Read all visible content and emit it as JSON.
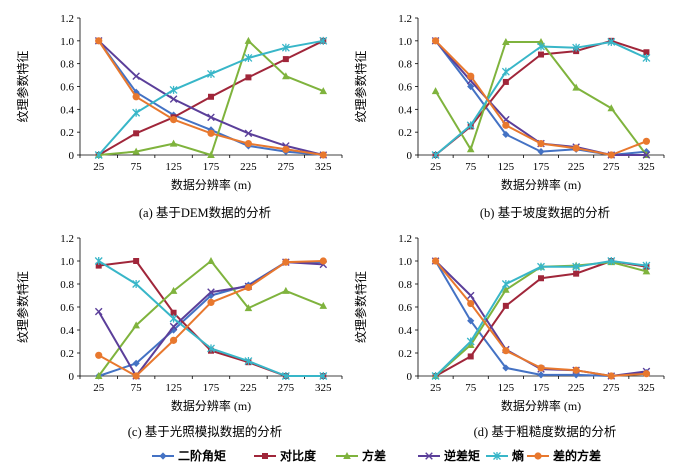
{
  "legend": [
    {
      "label": "二阶角矩",
      "color": "#4472C4",
      "marker": "diamond"
    },
    {
      "label": "对比度",
      "color": "#A0263A",
      "marker": "square"
    },
    {
      "label": "方差",
      "color": "#7FB33D",
      "marker": "triangle"
    },
    {
      "label": "逆差矩",
      "color": "#5B3F9A",
      "marker": "x"
    },
    {
      "label": "熵",
      "color": "#38B6C8",
      "marker": "star"
    },
    {
      "label": "差的方差",
      "color": "#E8782E",
      "marker": "circle"
    }
  ],
  "chart_data": [
    {
      "type": "line",
      "caption": "(a) 基于DEM数据的分析",
      "xlabel": "数据分辨率 (m)",
      "ylabel": "纹理参数特征",
      "x": [
        25,
        75,
        125,
        175,
        225,
        275,
        325
      ],
      "yticks": [
        "0",
        "0.2",
        "0.4",
        "0.6",
        "0.8",
        "1.0",
        "1.2"
      ],
      "ylim": [
        0,
        1.2
      ],
      "series": [
        {
          "name": "二阶角矩",
          "values": [
            1.0,
            0.55,
            0.35,
            0.22,
            0.08,
            0.03,
            0.0
          ]
        },
        {
          "name": "对比度",
          "values": [
            0.0,
            0.19,
            0.33,
            0.51,
            0.68,
            0.84,
            1.0
          ]
        },
        {
          "name": "方差",
          "values": [
            0.0,
            0.03,
            0.1,
            0.0,
            1.0,
            0.69,
            0.56
          ]
        },
        {
          "name": "逆差矩",
          "values": [
            1.0,
            0.69,
            0.49,
            0.33,
            0.19,
            0.08,
            0.0
          ]
        },
        {
          "name": "熵",
          "values": [
            0.0,
            0.37,
            0.57,
            0.71,
            0.85,
            0.94,
            1.0
          ]
        },
        {
          "name": "差的方差",
          "values": [
            1.0,
            0.51,
            0.31,
            0.19,
            0.1,
            0.05,
            0.0
          ]
        }
      ]
    },
    {
      "type": "line",
      "caption": "(b) 基于坡度数据的分析",
      "xlabel": "数据分辨率 (m)",
      "ylabel": "纹理参数特征",
      "x": [
        25,
        75,
        125,
        175,
        225,
        275,
        325
      ],
      "yticks": [
        "0",
        "0.2",
        "0.4",
        "0.6",
        "0.8",
        "1.0",
        "1.2"
      ],
      "ylim": [
        0,
        1.2
      ],
      "series": [
        {
          "name": "二阶角矩",
          "values": [
            1.0,
            0.6,
            0.18,
            0.03,
            0.05,
            0.0,
            0.03
          ]
        },
        {
          "name": "对比度",
          "values": [
            0.0,
            0.25,
            0.64,
            0.88,
            0.91,
            1.0,
            0.9
          ]
        },
        {
          "name": "方差",
          "values": [
            0.56,
            0.05,
            0.99,
            0.99,
            0.59,
            0.41,
            0.0
          ]
        },
        {
          "name": "逆差矩",
          "values": [
            1.0,
            0.65,
            0.31,
            0.1,
            0.07,
            0.0,
            0.0
          ]
        },
        {
          "name": "熵",
          "values": [
            0.0,
            0.26,
            0.73,
            0.95,
            0.94,
            0.99,
            0.85
          ]
        },
        {
          "name": "差的方差",
          "values": [
            1.0,
            0.69,
            0.26,
            0.1,
            0.06,
            0.0,
            0.12
          ]
        }
      ]
    },
    {
      "type": "line",
      "caption": "(c) 基于光照模拟数据的分析",
      "xlabel": "数据分辨率 (m)",
      "ylabel": "纹理参数特征",
      "x": [
        25,
        75,
        125,
        175,
        225,
        275,
        325
      ],
      "yticks": [
        "0",
        "0.2",
        "0.4",
        "0.6",
        "0.8",
        "1.0",
        "1.2"
      ],
      "ylim": [
        0,
        1.2
      ],
      "series": [
        {
          "name": "二阶角矩",
          "values": [
            0.0,
            0.11,
            0.4,
            0.7,
            0.79,
            0.99,
            0.99
          ]
        },
        {
          "name": "对比度",
          "values": [
            0.96,
            1.0,
            0.55,
            0.22,
            0.12,
            0.0,
            0.0
          ]
        },
        {
          "name": "方差",
          "values": [
            0.0,
            0.44,
            0.74,
            1.0,
            0.59,
            0.74,
            0.61
          ]
        },
        {
          "name": "逆差矩",
          "values": [
            0.56,
            0.0,
            0.43,
            0.73,
            0.78,
            0.99,
            0.97
          ]
        },
        {
          "name": "熵",
          "values": [
            1.0,
            0.8,
            0.5,
            0.24,
            0.13,
            0.0,
            0.0
          ]
        },
        {
          "name": "差的方差",
          "values": [
            0.18,
            0.0,
            0.31,
            0.64,
            0.77,
            0.99,
            1.0
          ]
        }
      ]
    },
    {
      "type": "line",
      "caption": "(d) 基于粗糙度数据的分析",
      "xlabel": "数据分辨率 (m)",
      "ylabel": "纹理参数特征",
      "x": [
        25,
        75,
        125,
        175,
        225,
        275,
        325
      ],
      "yticks": [
        "0",
        "0.2",
        "0.4",
        "0.6",
        "0.8",
        "1.0",
        "1.2"
      ],
      "ylim": [
        0,
        1.2
      ],
      "series": [
        {
          "name": "二阶角矩",
          "values": [
            1.0,
            0.48,
            0.07,
            0.01,
            0.01,
            0.0,
            0.03
          ]
        },
        {
          "name": "对比度",
          "values": [
            0.0,
            0.17,
            0.61,
            0.85,
            0.89,
            1.0,
            0.95
          ]
        },
        {
          "name": "方差",
          "values": [
            0.0,
            0.27,
            0.75,
            0.95,
            0.96,
            0.99,
            0.91
          ]
        },
        {
          "name": "逆差矩",
          "values": [
            1.0,
            0.7,
            0.23,
            0.06,
            0.05,
            0.0,
            0.04
          ]
        },
        {
          "name": "熵",
          "values": [
            0.0,
            0.3,
            0.8,
            0.95,
            0.95,
            1.0,
            0.96
          ]
        },
        {
          "name": "差的方差",
          "values": [
            1.0,
            0.63,
            0.22,
            0.07,
            0.05,
            0.0,
            0.02
          ]
        }
      ]
    }
  ]
}
